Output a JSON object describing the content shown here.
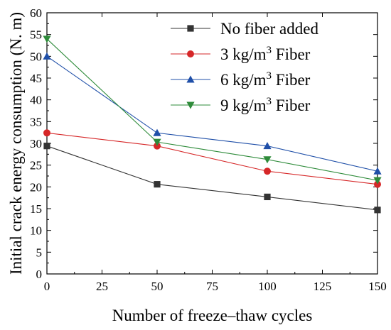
{
  "chart_data": {
    "type": "line",
    "title": "",
    "xlabel": "Number of freeze–thaw cycles",
    "ylabel": "Initial crack energy consumption (N. m)",
    "xlim": [
      0,
      150
    ],
    "ylim": [
      0,
      60
    ],
    "x_ticks": [
      0,
      25,
      50,
      75,
      100,
      125,
      150
    ],
    "y_ticks": [
      0,
      5,
      10,
      15,
      20,
      25,
      30,
      35,
      40,
      45,
      50,
      55,
      60
    ],
    "x_tick_labels": [
      "0",
      "25",
      "50",
      "75",
      "100",
      "125",
      "150"
    ],
    "y_tick_labels": [
      "0",
      "5",
      "10",
      "15",
      "20",
      "25",
      "30",
      "35",
      "40",
      "45",
      "50",
      "55",
      "60"
    ],
    "grid": false,
    "legend_position": "top-right",
    "x": [
      0,
      50,
      100,
      150
    ],
    "series": [
      {
        "name": "No fiber added",
        "name_base": "No fiber added",
        "name_sup": "",
        "name_tail": "",
        "marker": "square",
        "color": "#333333",
        "values": [
          29.4,
          20.6,
          17.7,
          14.7
        ]
      },
      {
        "name": "3 kg/m3 Fiber",
        "name_base": "3 kg/m",
        "name_sup": "3",
        "name_tail": " Fiber",
        "marker": "circle",
        "color": "#d62728",
        "values": [
          32.4,
          29.4,
          23.6,
          20.6
        ]
      },
      {
        "name": "6 kg/m3 Fiber",
        "name_base": "6 kg/m",
        "name_sup": "3",
        "name_tail": " Fiber",
        "marker": "triangle-up",
        "color": "#1f4fa8",
        "values": [
          50.0,
          32.4,
          29.4,
          23.6
        ]
      },
      {
        "name": "9 kg/m3 Fiber",
        "name_base": "9 kg/m",
        "name_sup": "3",
        "name_tail": " Fiber",
        "marker": "triangle-down",
        "color": "#2e8b3a",
        "values": [
          54.0,
          30.3,
          26.3,
          21.5
        ]
      }
    ]
  }
}
